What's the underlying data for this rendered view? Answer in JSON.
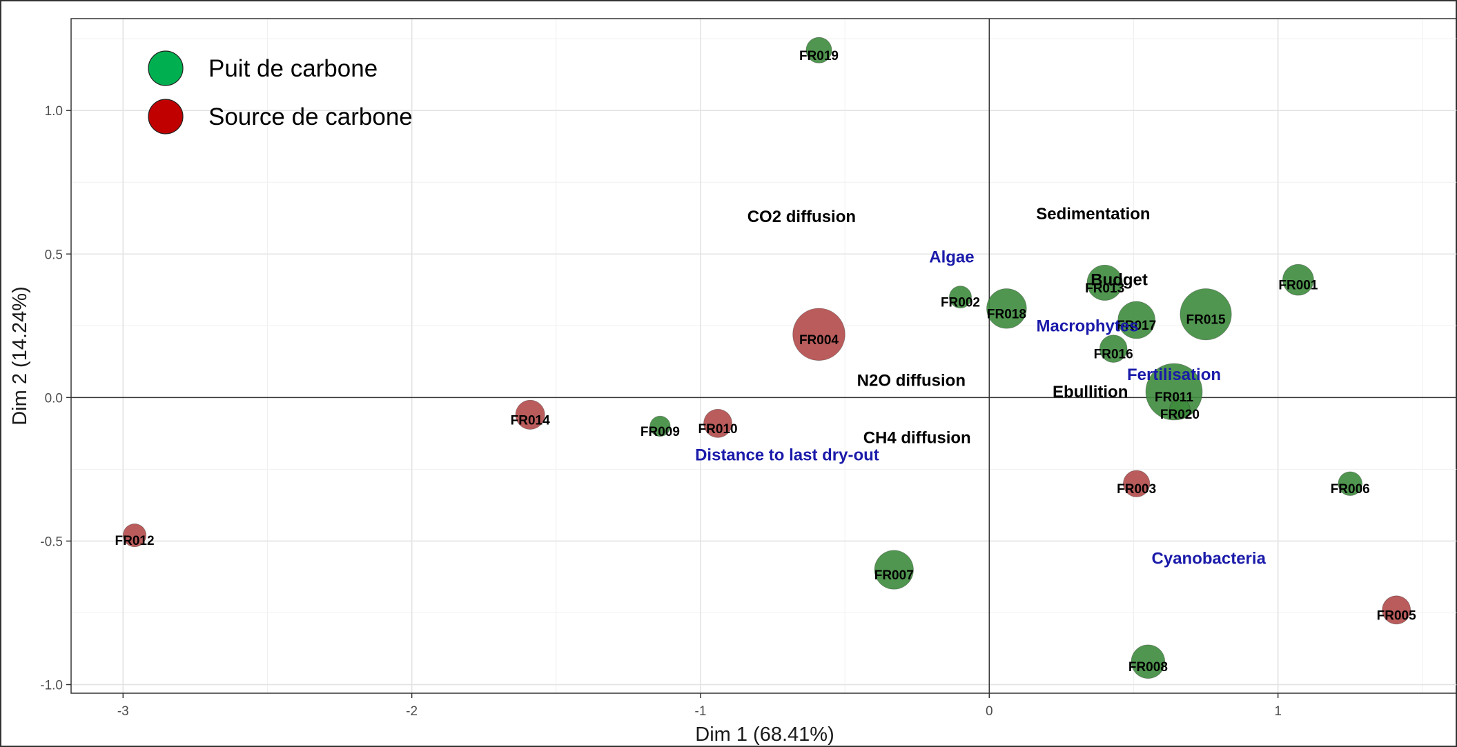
{
  "chart_data": {
    "type": "scatter",
    "title": "",
    "xlabel": "Dim 1 (68.41%)",
    "ylabel": "Dim 2 (14.24%)",
    "xlim": [
      -3.18,
      1.62
    ],
    "ylim": [
      -1.03,
      1.32
    ],
    "x_ticks": [
      -3,
      -2,
      -1,
      0,
      1
    ],
    "y_ticks": [
      -1.0,
      -0.5,
      0.0,
      0.5,
      1.0
    ],
    "x_tick_labels": [
      "-3",
      "-2",
      "-1",
      "0",
      "1"
    ],
    "y_tick_labels": [
      "-1.0",
      "-0.5",
      "0.0",
      "0.5",
      "1.0"
    ],
    "grid": true,
    "legend_position": "top-left",
    "legend": [
      {
        "key": "sink",
        "label": "Puit de carbone",
        "color": "#00b050"
      },
      {
        "key": "source",
        "label": "Source de carbone",
        "color": "#c00000"
      }
    ],
    "colors": {
      "sink_point": "#3d8b3d",
      "source_point": "#b24a4a",
      "supplementary": "#1a1aaa",
      "active_var": "#000000"
    },
    "points": [
      {
        "label": "FR019",
        "x": -0.59,
        "y": 1.21,
        "group": "sink",
        "size": 0.3
      },
      {
        "label": "FR002",
        "x": -0.1,
        "y": 0.35,
        "group": "sink",
        "size": 0.22
      },
      {
        "label": "FR018",
        "x": 0.06,
        "y": 0.31,
        "group": "sink",
        "size": 0.62
      },
      {
        "label": "FR013",
        "x": 0.4,
        "y": 0.4,
        "group": "sink",
        "size": 0.52
      },
      {
        "label": "FR017",
        "x": 0.51,
        "y": 0.27,
        "group": "sink",
        "size": 0.56
      },
      {
        "label": "FR015",
        "x": 0.75,
        "y": 0.29,
        "group": "sink",
        "size": 0.88
      },
      {
        "label": "FR001",
        "x": 1.07,
        "y": 0.41,
        "group": "sink",
        "size": 0.42
      },
      {
        "label": "FR016",
        "x": 0.43,
        "y": 0.17,
        "group": "sink",
        "size": 0.34
      },
      {
        "label": "FR011",
        "x": 0.64,
        "y": 0.02,
        "group": "sink",
        "size": 1.0
      },
      {
        "label": "FR020",
        "x": 0.66,
        "y": -0.04,
        "group": "sink",
        "size": 0.18
      },
      {
        "label": "FR009",
        "x": -1.14,
        "y": -0.1,
        "group": "sink",
        "size": 0.18
      },
      {
        "label": "FR006",
        "x": 1.25,
        "y": -0.3,
        "group": "sink",
        "size": 0.26
      },
      {
        "label": "FR007",
        "x": -0.33,
        "y": -0.6,
        "group": "sink",
        "size": 0.6
      },
      {
        "label": "FR008",
        "x": 0.55,
        "y": -0.92,
        "group": "sink",
        "size": 0.48
      },
      {
        "label": "FR004",
        "x": -0.59,
        "y": 0.22,
        "group": "source",
        "size": 0.9
      },
      {
        "label": "FR014",
        "x": -1.59,
        "y": -0.06,
        "group": "source",
        "size": 0.38
      },
      {
        "label": "FR010",
        "x": -0.94,
        "y": -0.09,
        "group": "source",
        "size": 0.36
      },
      {
        "label": "FR003",
        "x": 0.51,
        "y": -0.3,
        "group": "source",
        "size": 0.32
      },
      {
        "label": "FR005",
        "x": 1.41,
        "y": -0.74,
        "group": "source",
        "size": 0.36
      },
      {
        "label": "FR012",
        "x": -2.96,
        "y": -0.48,
        "group": "source",
        "size": 0.24
      }
    ],
    "variables": [
      {
        "label": "CO2 diffusion",
        "x": -0.65,
        "y": 0.63,
        "type": "active"
      },
      {
        "label": "Sedimentation",
        "x": 0.36,
        "y": 0.64,
        "type": "active"
      },
      {
        "label": "Budget",
        "x": 0.45,
        "y": 0.41,
        "type": "active"
      },
      {
        "label": "N2O diffusion",
        "x": -0.27,
        "y": 0.06,
        "type": "active"
      },
      {
        "label": "Ebullition",
        "x": 0.35,
        "y": 0.02,
        "type": "active"
      },
      {
        "label": "CH4 diffusion",
        "x": -0.25,
        "y": -0.14,
        "type": "active"
      },
      {
        "label": "Algae",
        "x": -0.13,
        "y": 0.49,
        "type": "supplementary"
      },
      {
        "label": "Macrophytes",
        "x": 0.34,
        "y": 0.25,
        "type": "supplementary"
      },
      {
        "label": "Fertilisation",
        "x": 0.64,
        "y": 0.08,
        "type": "supplementary"
      },
      {
        "label": "Distance to last dry-out",
        "x": -0.7,
        "y": -0.2,
        "type": "supplementary"
      },
      {
        "label": "Cyanobacteria",
        "x": 0.76,
        "y": -0.56,
        "type": "supplementary"
      }
    ]
  }
}
